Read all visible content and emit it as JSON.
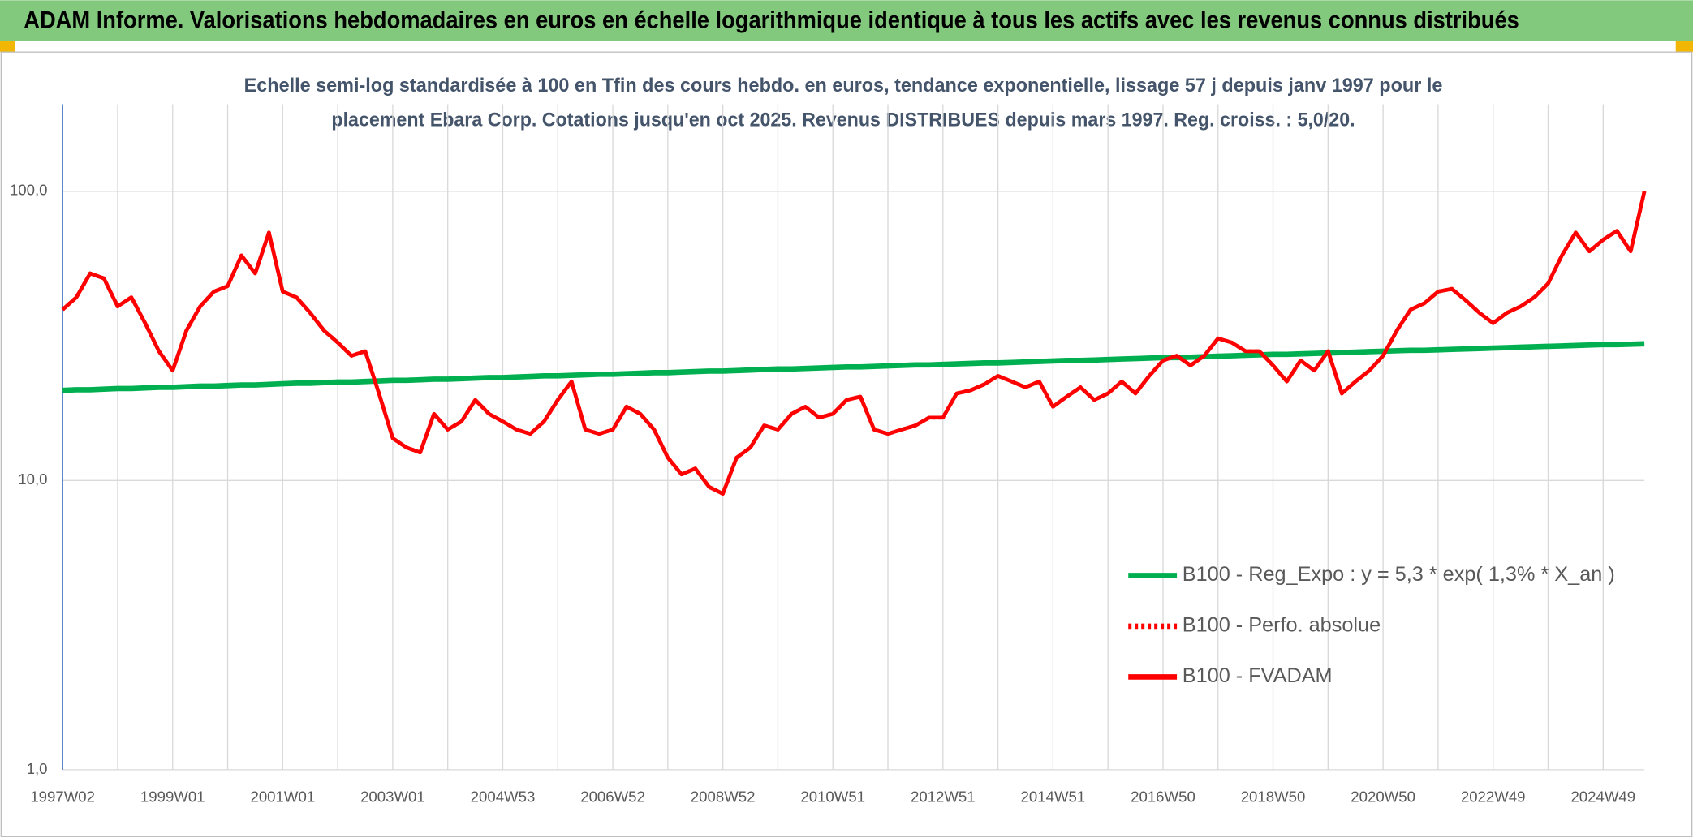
{
  "chart_data": {
    "type": "line",
    "title": "ADAM Informe. Valorisations hebdomadaires en euros en échelle logarithmique identique à tous les actifs avec les revenus connus distribués",
    "subtitle": [
      "Echelle semi-log standardisée à 100 en Tfin des cours hebdo. en euros, tendance exponentielle, lissage 57 j depuis janv 1997 pour le",
      "placement Ebara Corp. Cotations jusqu'en oct 2025. Revenus DISTRIBUES depuis mars 1997. Reg. croiss. : 5,0/20."
    ],
    "log_scale": true,
    "grid": true,
    "legend": "right",
    "ylim": [
      1,
      200
    ],
    "yticks": [
      {
        "value": 1,
        "label": "1,0"
      },
      {
        "value": 10,
        "label": "10,0"
      },
      {
        "value": 100,
        "label": "100,0"
      }
    ],
    "categories": [
      "1997W02",
      null,
      null,
      null,
      null,
      null,
      null,
      null,
      "1999W01",
      null,
      null,
      null,
      null,
      null,
      null,
      null,
      "2001W01",
      null,
      null,
      null,
      null,
      null,
      null,
      null,
      "2003W01",
      null,
      null,
      null,
      null,
      null,
      null,
      null,
      "2004W53",
      null,
      null,
      null,
      null,
      null,
      null,
      null,
      "2006W52",
      null,
      null,
      null,
      null,
      null,
      null,
      null,
      "2008W52",
      null,
      null,
      null,
      null,
      null,
      null,
      null,
      "2010W51",
      null,
      null,
      null,
      null,
      null,
      null,
      null,
      "2012W51",
      null,
      null,
      null,
      null,
      null,
      null,
      null,
      "2014W51",
      null,
      null,
      null,
      null,
      null,
      null,
      null,
      "2016W50",
      null,
      null,
      null,
      null,
      null,
      null,
      null,
      "2018W50",
      null,
      null,
      null,
      null,
      null,
      null,
      null,
      "2020W50",
      null,
      null,
      null,
      null,
      null,
      null,
      null,
      "2022W49",
      null,
      null,
      null,
      null,
      null,
      null,
      null,
      "2024W49",
      null,
      null,
      null
    ],
    "series": [
      {
        "name": "B100 - Reg_Expo : y = 5,3 * exp( 1,3% *  X_an )",
        "color": "#00b050",
        "style": "solid",
        "values": [
          20.5,
          20.6,
          20.6,
          20.7,
          20.8,
          20.8,
          20.9,
          21.0,
          21.0,
          21.1,
          21.2,
          21.2,
          21.3,
          21.4,
          21.4,
          21.5,
          21.6,
          21.7,
          21.7,
          21.8,
          21.9,
          21.9,
          22.0,
          22.1,
          22.2,
          22.2,
          22.3,
          22.4,
          22.4,
          22.5,
          22.6,
          22.7,
          22.7,
          22.8,
          22.9,
          23.0,
          23.0,
          23.1,
          23.2,
          23.3,
          23.3,
          23.4,
          23.5,
          23.6,
          23.6,
          23.7,
          23.8,
          23.9,
          23.9,
          24.0,
          24.1,
          24.2,
          24.3,
          24.3,
          24.4,
          24.5,
          24.6,
          24.7,
          24.7,
          24.8,
          24.9,
          25.0,
          25.1,
          25.1,
          25.2,
          25.3,
          25.4,
          25.5,
          25.5,
          25.6,
          25.7,
          25.8,
          25.9,
          26.0,
          26.0,
          26.1,
          26.2,
          26.3,
          26.4,
          26.5,
          26.6,
          26.6,
          26.7,
          26.8,
          26.9,
          27.0,
          27.1,
          27.2,
          27.3,
          27.3,
          27.4,
          27.5,
          27.6,
          27.7,
          27.8,
          27.9,
          28.0,
          28.1,
          28.2,
          28.2,
          28.3,
          28.4,
          28.5,
          28.6,
          28.7,
          28.8,
          28.9,
          29.0,
          29.1,
          29.2,
          29.3,
          29.4,
          29.5,
          29.5,
          29.6,
          29.7
        ]
      },
      {
        "name": "B100 - Perfo. absolue",
        "color": "#ff0000",
        "style": "dotted",
        "values": [
          39,
          43,
          52,
          50,
          40,
          43,
          35,
          28,
          24,
          33,
          40,
          45,
          47,
          60,
          52,
          72,
          45,
          43,
          38,
          33,
          30,
          27,
          28,
          20,
          14,
          13,
          12.5,
          17,
          15,
          16,
          19,
          17,
          16,
          15,
          14.5,
          16,
          19,
          22,
          15,
          14.5,
          15,
          18,
          17,
          15,
          12,
          10.5,
          11,
          9.5,
          9,
          12,
          13,
          15.5,
          15,
          17,
          18,
          16.5,
          17,
          19,
          19.5,
          15,
          14.5,
          15,
          15.5,
          16.5,
          16.5,
          20,
          20.5,
          21.5,
          23,
          22,
          21,
          22,
          18,
          19.5,
          21,
          19,
          20,
          22,
          20,
          23,
          26,
          27,
          25,
          27,
          31,
          30,
          28,
          28,
          25,
          22,
          26,
          24,
          28,
          20,
          22,
          24,
          27,
          33,
          39,
          41,
          45,
          46,
          42,
          38,
          35,
          38,
          40,
          43,
          48,
          60,
          72,
          62,
          68,
          73,
          62,
          100
        ]
      },
      {
        "name": "B100 - FVADAM",
        "color": "#ff0000",
        "style": "solid",
        "values": [
          39,
          43,
          52,
          50,
          40,
          43,
          35,
          28,
          24,
          33,
          40,
          45,
          47,
          60,
          52,
          72,
          45,
          43,
          38,
          33,
          30,
          27,
          28,
          20,
          14,
          13,
          12.5,
          17,
          15,
          16,
          19,
          17,
          16,
          15,
          14.5,
          16,
          19,
          22,
          15,
          14.5,
          15,
          18,
          17,
          15,
          12,
          10.5,
          11,
          9.5,
          9,
          12,
          13,
          15.5,
          15,
          17,
          18,
          16.5,
          17,
          19,
          19.5,
          15,
          14.5,
          15,
          15.5,
          16.5,
          16.5,
          20,
          20.5,
          21.5,
          23,
          22,
          21,
          22,
          18,
          19.5,
          21,
          19,
          20,
          22,
          20,
          23,
          26,
          27,
          25,
          27,
          31,
          30,
          28,
          28,
          25,
          22,
          26,
          24,
          28,
          20,
          22,
          24,
          27,
          33,
          39,
          41,
          45,
          46,
          42,
          38,
          35,
          38,
          40,
          43,
          48,
          60,
          72,
          62,
          68,
          73,
          62,
          100
        ]
      }
    ]
  }
}
